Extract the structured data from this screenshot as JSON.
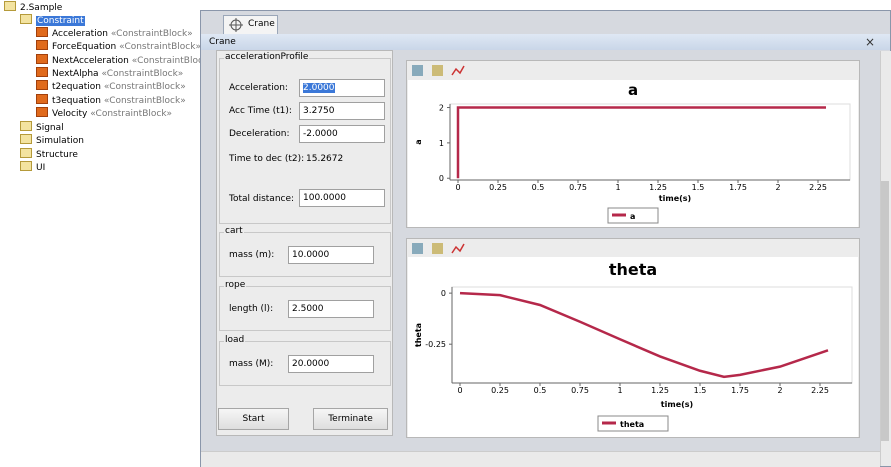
{
  "tree": {
    "root": "2.Sample",
    "folder": "Constraint",
    "blocks": [
      {
        "name": "Acceleration",
        "stereotype": "«ConstraintBlock»"
      },
      {
        "name": "ForceEquation",
        "stereotype": "«ConstraintBlock»"
      },
      {
        "name": "NextAcceleration",
        "stereotype": "«ConstraintBlock»"
      },
      {
        "name": "NextAlpha",
        "stereotype": "«ConstraintBlock»"
      },
      {
        "name": "t2equation",
        "stereotype": "«ConstraintBlock»"
      },
      {
        "name": "t3equation",
        "stereotype": "«ConstraintBlock»"
      },
      {
        "name": "Velocity",
        "stereotype": "«ConstraintBlock»"
      }
    ],
    "folders": [
      "Signal",
      "Simulation",
      "Structure",
      "UI"
    ]
  },
  "tab": "Crane",
  "window_title": "Crane",
  "groups": [
    {
      "title": "accelerationProfile",
      "fields": [
        {
          "label": "Acceleration:",
          "value": "2.0000"
        },
        {
          "label": "Acc Time (t1):",
          "value": "3.2750"
        },
        {
          "label": "Deceleration:",
          "value": "-2.0000"
        },
        {
          "label": "Time to dec (t2):",
          "value": "15.2672"
        },
        {
          "label": "Total distance:",
          "value": "100.0000"
        }
      ]
    },
    {
      "title": "cart",
      "fields": [
        {
          "label": "mass (m):",
          "value": "10.0000"
        }
      ]
    },
    {
      "title": "rope",
      "fields": [
        {
          "label": "length (l):",
          "value": "2.5000"
        }
      ]
    },
    {
      "title": "load",
      "fields": [
        {
          "label": "mass (M):",
          "value": "20.0000"
        }
      ]
    }
  ],
  "buttons": [
    "Start",
    "Terminate"
  ],
  "chart_data": [
    {
      "type": "line",
      "title": "a",
      "x_label": "time(s)",
      "y_label": "a",
      "x": [
        0,
        0,
        2.3
      ],
      "series": [
        {
          "name": "a",
          "color": "#b5284a",
          "values": [
            0,
            2,
            2
          ]
        }
      ],
      "xlim": [
        -0.05,
        2.45
      ],
      "ylim": [
        -0.05,
        2.1
      ],
      "xticks": [
        0,
        0.25,
        0.5,
        0.75,
        1,
        1.25,
        1.5,
        1.75,
        2,
        2.25
      ],
      "yticks": [
        0,
        1,
        2
      ]
    },
    {
      "type": "line",
      "title": "theta",
      "x_label": "time(s)",
      "y_label": "theta",
      "x": [
        0,
        0.25,
        0.5,
        0.75,
        1,
        1.25,
        1.5,
        1.65,
        1.75,
        2,
        2.3
      ],
      "series": [
        {
          "name": "theta",
          "color": "#b5284a",
          "values": [
            0,
            -0.01,
            -0.058,
            -0.14,
            -0.226,
            -0.31,
            -0.38,
            -0.41,
            -0.4,
            -0.36,
            -0.28
          ]
        }
      ],
      "xlim": [
        -0.05,
        2.45
      ],
      "ylim": [
        -0.44,
        0.03
      ],
      "xticks": [
        0,
        0.25,
        0.5,
        0.75,
        1,
        1.25,
        1.5,
        1.75,
        2,
        2.25
      ],
      "yticks": [
        0,
        -0.25
      ]
    }
  ]
}
